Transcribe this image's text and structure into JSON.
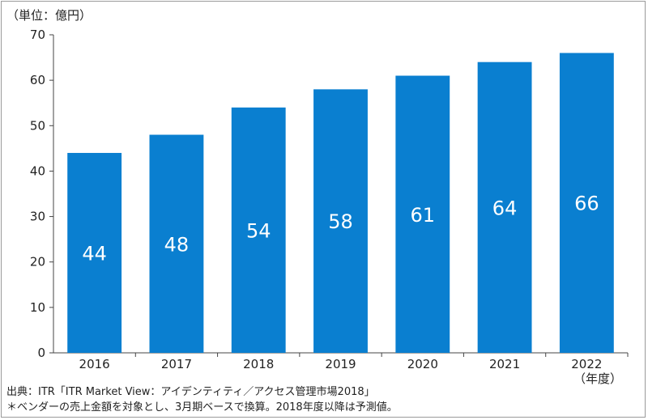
{
  "unit_label": "（単位：億円）",
  "year_unit": "（年度）",
  "footer": {
    "source": "出典：ITR「ITR Market View：アイデンティティ／アクセス管理市場2018」",
    "note": "＊ベンダーの売上金額を対象とし、3月期ベースで換算。2018年度以降は予測値。"
  },
  "chart_data": {
    "type": "bar",
    "categories": [
      "2016",
      "2017",
      "2018",
      "2019",
      "2020",
      "2021",
      "2022"
    ],
    "values": [
      44,
      48,
      54,
      58,
      61,
      64,
      66
    ],
    "data_labels": [
      "44",
      "48",
      "54",
      "58",
      "61",
      "64",
      "66"
    ],
    "title": "",
    "xlabel": "",
    "ylabel": "",
    "ylim": [
      0,
      70
    ],
    "yticks": [
      0,
      10,
      20,
      30,
      40,
      50,
      60,
      70
    ],
    "grid": false,
    "colors": {
      "bar": "#0a7fd0",
      "bar_label": "#ffffff",
      "axis": "#444444"
    }
  }
}
